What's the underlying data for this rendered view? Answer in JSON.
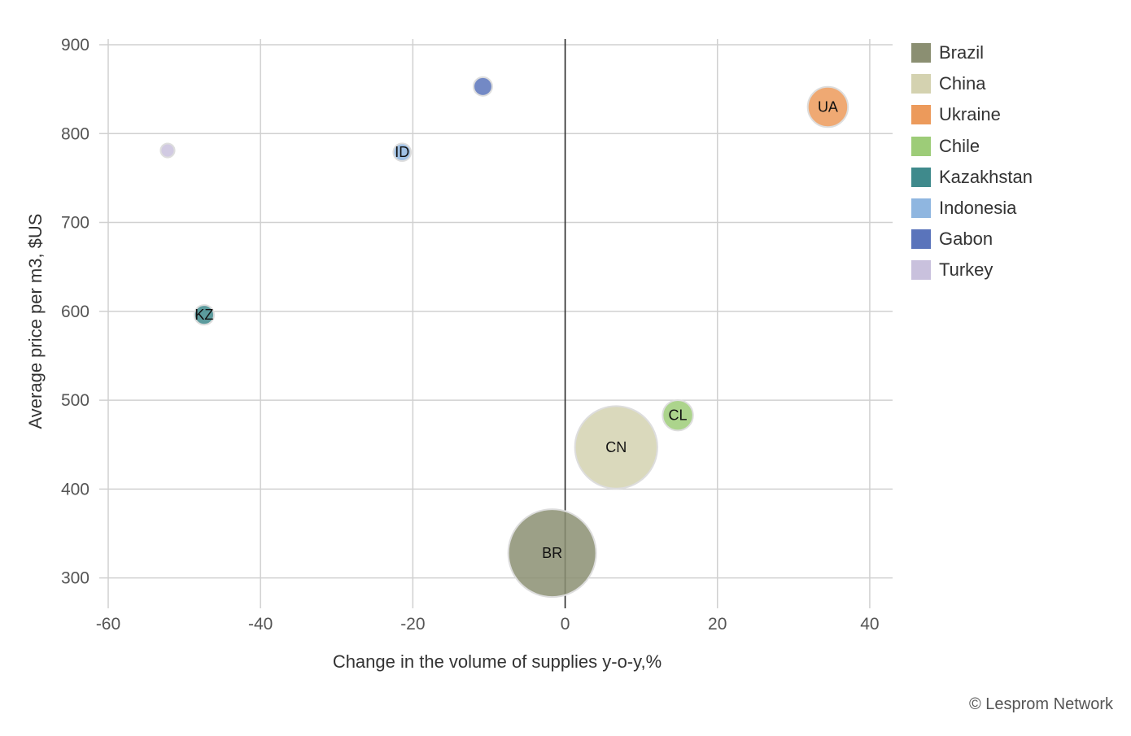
{
  "chart_data": {
    "type": "scatter",
    "subtype": "bubble",
    "xlabel": "Change in the volume of supplies y-o-y,%",
    "ylabel": "Average price per m3, $US",
    "xlim": [
      -60,
      43
    ],
    "ylim": [
      275,
      900
    ],
    "xticks": [
      -60,
      -40,
      -20,
      0,
      20,
      40
    ],
    "yticks": [
      300,
      400,
      500,
      600,
      700,
      800,
      900
    ],
    "grid": true,
    "legend_position": "right",
    "series": [
      {
        "name": "Brazil",
        "code": "BR",
        "x": -1.7,
        "y": 328,
        "size": 100,
        "color": "#8b8f72"
      },
      {
        "name": "China",
        "code": "CN",
        "x": 6.7,
        "y": 447,
        "size": 88,
        "color": "#d4d2b0"
      },
      {
        "name": "Ukraine",
        "code": "UA",
        "x": 34.5,
        "y": 830,
        "size": 21,
        "color": "#ec9a5b"
      },
      {
        "name": "Chile",
        "code": "CL",
        "x": 14.8,
        "y": 483,
        "size": 12,
        "color": "#9dcc78"
      },
      {
        "name": "Kazakhstan",
        "code": "KZ",
        "x": -47.4,
        "y": 596,
        "size": 5,
        "color": "#3f8a8c"
      },
      {
        "name": "Indonesia",
        "code": "ID",
        "x": -21.4,
        "y": 779,
        "size": 4,
        "color": "#8fb6e0"
      },
      {
        "name": "Gabon",
        "code": "",
        "x": -10.8,
        "y": 853,
        "size": 4.5,
        "color": "#5a74bb"
      },
      {
        "name": "Turkey",
        "code": "",
        "x": -52.2,
        "y": 781,
        "size": 2.5,
        "color": "#c9c1dd"
      }
    ]
  },
  "credit": "© Lesprom Network"
}
